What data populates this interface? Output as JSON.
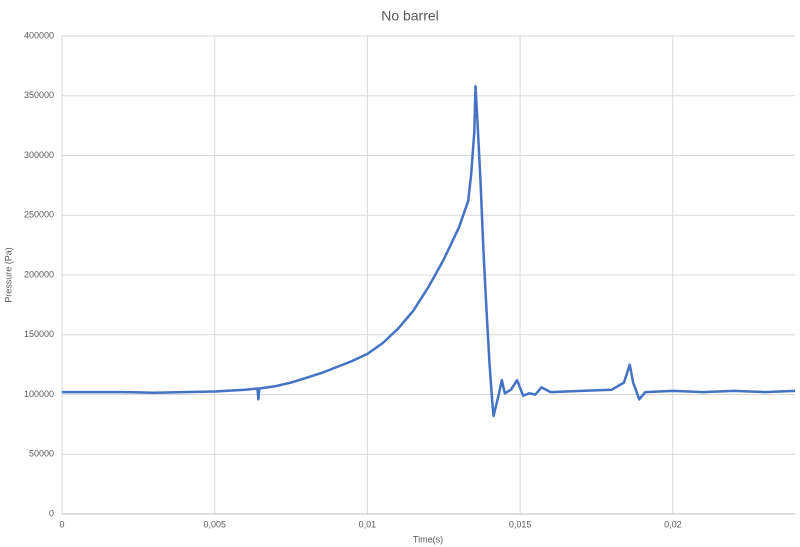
{
  "chart_data": {
    "type": "line",
    "title": "No barrel",
    "x_label": "Time(s)",
    "y_label": "Pressure (Pa)",
    "grid": true,
    "xlim": [
      0,
      0.024
    ],
    "ylim": [
      0,
      400000
    ],
    "xticks": [
      0,
      {
        "value": 0.005,
        "label": "0,005"
      },
      {
        "value": 0.01,
        "label": "0,01"
      },
      {
        "value": 0.015,
        "label": "0,015"
      },
      {
        "value": 0.02,
        "label": "0,02"
      }
    ],
    "yticks": [
      0,
      50000,
      100000,
      150000,
      200000,
      250000,
      300000,
      350000,
      400000
    ],
    "series": [
      {
        "name": "Pressure",
        "color": "#4472c4",
        "x": [
          0,
          0.001,
          0.002,
          0.003,
          0.004,
          0.005,
          0.006,
          0.0064,
          0.00643,
          0.00646,
          0.007,
          0.0075,
          0.008,
          0.0085,
          0.009,
          0.0095,
          0.01,
          0.0105,
          0.011,
          0.0115,
          0.012,
          0.0125,
          0.013,
          0.0133,
          0.0134,
          0.0135,
          0.01354,
          0.0136,
          0.0137,
          0.0138,
          0.0139,
          0.014,
          0.0141,
          0.01413,
          0.0143,
          0.0144,
          0.0145,
          0.0147,
          0.0149,
          0.0151,
          0.0153,
          0.0155,
          0.0157,
          0.016,
          0.017,
          0.018,
          0.0184,
          0.01859,
          0.0187,
          0.0189,
          0.0191,
          0.02,
          0.021,
          0.022,
          0.023,
          0.024
        ],
        "values": [
          102000,
          102000,
          102000,
          101500,
          102000,
          102500,
          104000,
          105000,
          96000,
          105000,
          107000,
          110000,
          114000,
          118000,
          123000,
          128000,
          134000,
          143000,
          155000,
          170000,
          190000,
          213000,
          240000,
          262000,
          285000,
          320000,
          358000,
          330000,
          280000,
          220000,
          170000,
          125000,
          90000,
          82000,
          100000,
          112000,
          101000,
          104000,
          112000,
          99000,
          101000,
          100000,
          106000,
          102000,
          103000,
          104000,
          110000,
          125000,
          110000,
          96000,
          102000,
          103000,
          102000,
          103000,
          102000,
          103000
        ]
      }
    ]
  }
}
